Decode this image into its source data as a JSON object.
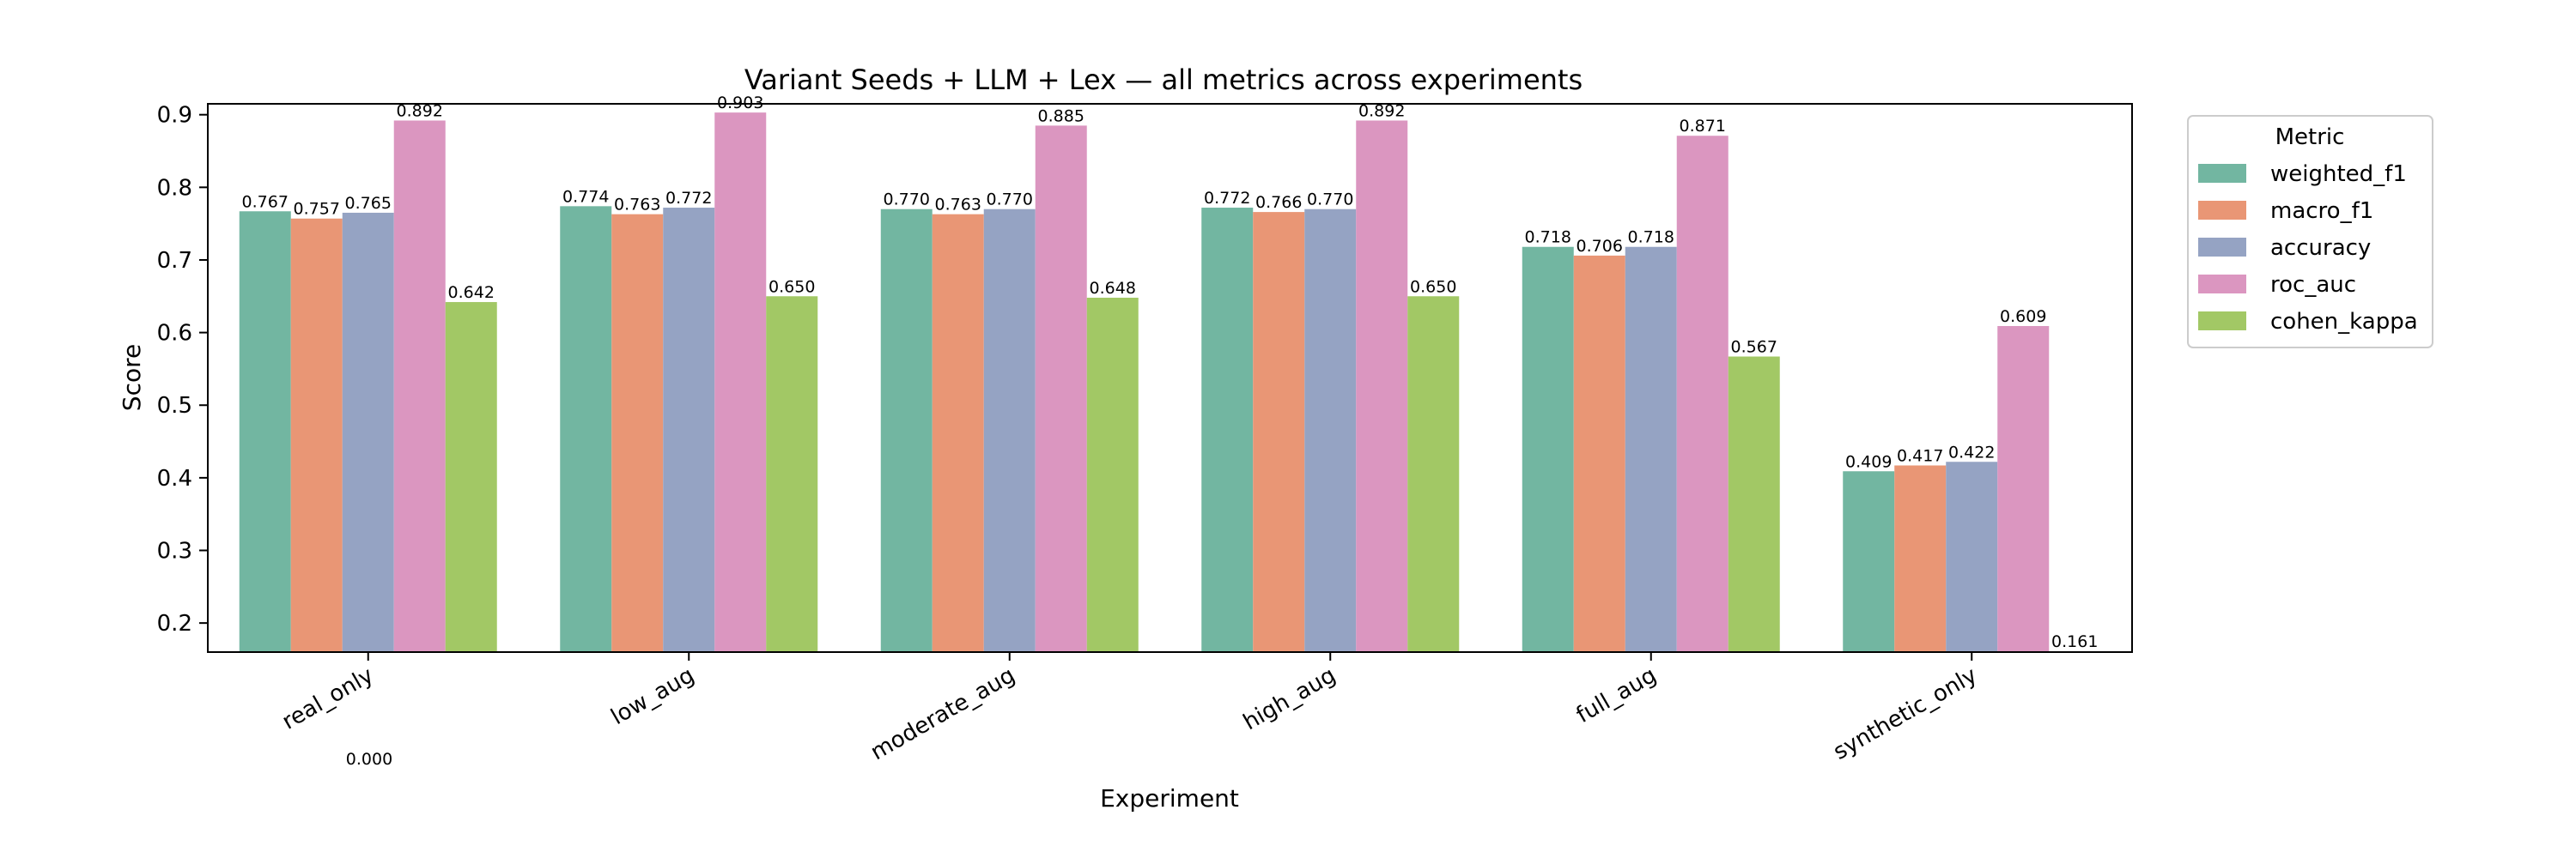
{
  "chart_data": {
    "type": "bar",
    "title": "Variant Seeds + LLM + Lex — all metrics across experiments",
    "xlabel": "Experiment",
    "ylabel": "Score",
    "ylim": [
      0.16,
      0.915
    ],
    "yticks": [
      "0.2",
      "0.3",
      "0.4",
      "0.5",
      "0.6",
      "0.7",
      "0.8",
      "0.9"
    ],
    "categories": [
      "real_only",
      "low_aug",
      "moderate_aug",
      "high_aug",
      "full_aug",
      "synthetic_only"
    ],
    "series": [
      {
        "name": "weighted_f1",
        "color": "#72b6a1",
        "values": [
          0.767,
          0.774,
          0.77,
          0.772,
          0.718,
          0.409
        ],
        "labels": [
          "0.767",
          "0.774",
          "0.770",
          "0.772",
          "0.718",
          "0.409"
        ]
      },
      {
        "name": "macro_f1",
        "color": "#e99675",
        "values": [
          0.757,
          0.763,
          0.763,
          0.766,
          0.706,
          0.417
        ],
        "labels": [
          "0.757",
          "0.763",
          "0.763",
          "0.766",
          "0.706",
          "0.417"
        ]
      },
      {
        "name": "accuracy",
        "color": "#95a3c3",
        "values": [
          0.765,
          0.772,
          0.77,
          0.77,
          0.718,
          0.422
        ],
        "labels": [
          "0.765",
          "0.772",
          "0.770",
          "0.770",
          "0.718",
          "0.422"
        ]
      },
      {
        "name": "roc_auc",
        "color": "#db96c0",
        "values": [
          0.892,
          0.903,
          0.885,
          0.892,
          0.871,
          0.609
        ],
        "labels": [
          "0.892",
          "0.903",
          "0.885",
          "0.892",
          "0.871",
          "0.609"
        ]
      },
      {
        "name": "cohen_kappa",
        "color": "#a2c865",
        "values": [
          0.642,
          0.65,
          0.648,
          0.65,
          0.567,
          0.161
        ],
        "labels": [
          "0.642",
          "0.650",
          "0.648",
          "0.650",
          "0.567",
          "0.161"
        ]
      }
    ],
    "extra_annotation": "0.000",
    "legend": {
      "title": "Metric",
      "position": "top-right, outside plot"
    },
    "grid": false
  }
}
